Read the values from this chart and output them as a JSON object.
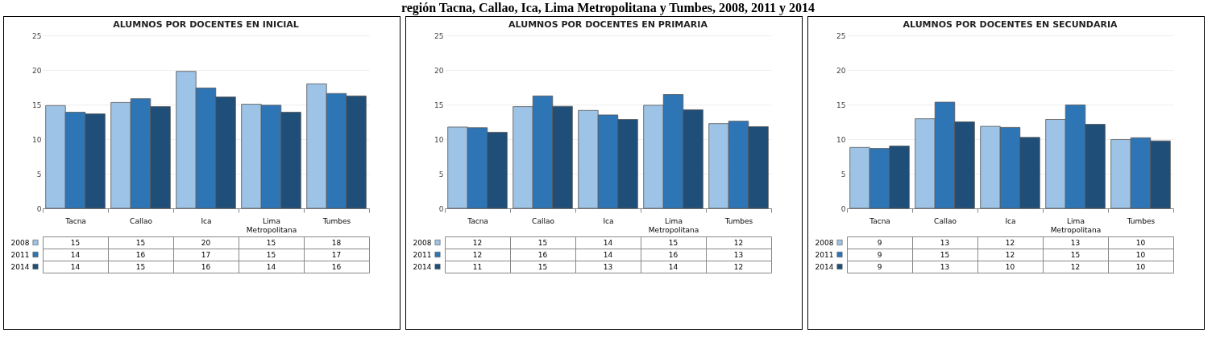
{
  "chart_data": [
    {
      "type": "bar",
      "title": "ALUMNOS POR DOCENTES EN INICIAL",
      "annotations": [
        "región Tacna, Callao, Ica, Lima Metropolitana y Tumbes, 2008, 2011 y 2014"
      ],
      "categories": [
        "Tacna",
        "Callao",
        "Ica",
        "Lima Metropolitana",
        "Tumbes"
      ],
      "ylim": [
        0,
        25
      ],
      "yticks": [
        0,
        5,
        10,
        15,
        20,
        25
      ],
      "grid": "y",
      "legend": "bottom",
      "series": [
        {
          "name": "2008",
          "color": "#9dc3e6",
          "values": [
            14.85,
            15.3,
            19.8,
            15.05,
            18.0
          ],
          "value_labels": [
            "15",
            "15",
            "20",
            "15",
            "18"
          ]
        },
        {
          "name": "2011",
          "color": "#2e75b6",
          "values": [
            13.9,
            15.85,
            17.4,
            14.9,
            16.6
          ],
          "value_labels": [
            "14",
            "16",
            "17",
            "15",
            "17"
          ]
        },
        {
          "name": "2014",
          "color": "#1f4e79",
          "values": [
            13.65,
            14.7,
            16.1,
            13.9,
            16.25
          ],
          "value_labels": [
            "14",
            "15",
            "16",
            "14",
            "16"
          ]
        }
      ]
    },
    {
      "type": "bar",
      "title": "ALUMNOS POR DOCENTES EN PRIMARIA",
      "categories": [
        "Tacna",
        "Callao",
        "Ica",
        "Lima Metropolitana",
        "Tumbes"
      ],
      "ylim": [
        0,
        25
      ],
      "yticks": [
        0,
        5,
        10,
        15,
        20,
        25
      ],
      "grid": "y",
      "legend": "bottom",
      "series": [
        {
          "name": "2008",
          "color": "#9dc3e6",
          "values": [
            11.75,
            14.7,
            14.15,
            14.9,
            12.25
          ],
          "value_labels": [
            "12",
            "15",
            "14",
            "15",
            "12"
          ]
        },
        {
          "name": "2011",
          "color": "#2e75b6",
          "values": [
            11.65,
            16.25,
            13.5,
            16.45,
            12.6
          ],
          "value_labels": [
            "12",
            "16",
            "14",
            "16",
            "13"
          ]
        },
        {
          "name": "2014",
          "color": "#1f4e79",
          "values": [
            11.0,
            14.75,
            12.85,
            14.25,
            11.8
          ],
          "value_labels": [
            "11",
            "15",
            "13",
            "14",
            "12"
          ]
        }
      ]
    },
    {
      "type": "bar",
      "title": "ALUMNOS POR DOCENTES EN SECUNDARIA",
      "categories": [
        "Tacna",
        "Callao",
        "Ica",
        "Lima Metropolitana",
        "Tumbes"
      ],
      "ylim": [
        0,
        25
      ],
      "yticks": [
        0,
        5,
        10,
        15,
        20,
        25
      ],
      "grid": "y",
      "legend": "bottom",
      "series": [
        {
          "name": "2008",
          "color": "#9dc3e6",
          "values": [
            8.8,
            12.95,
            11.85,
            12.85,
            9.95
          ],
          "value_labels": [
            "9",
            "13",
            "12",
            "13",
            "10"
          ]
        },
        {
          "name": "2011",
          "color": "#2e75b6",
          "values": [
            8.65,
            15.35,
            11.7,
            14.95,
            10.2
          ],
          "value_labels": [
            "9",
            "15",
            "12",
            "15",
            "10"
          ]
        },
        {
          "name": "2014",
          "color": "#1f4e79",
          "values": [
            9.0,
            12.5,
            10.25,
            12.15,
            9.75
          ],
          "value_labels": [
            "9",
            "13",
            "10",
            "12",
            "10"
          ]
        }
      ]
    }
  ]
}
